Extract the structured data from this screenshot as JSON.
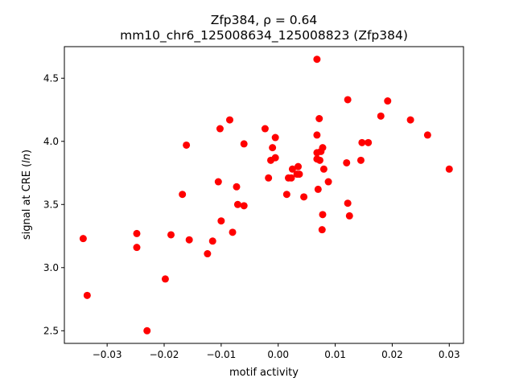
{
  "chart_data": {
    "type": "scatter",
    "title_line1": "Zfp384, ρ = 0.64",
    "title_line2": "mm10_chr6_125008634_125008823 (Zfp384)",
    "xlabel": "motif activity",
    "ylabel": "signal at CRE (ln)",
    "xlim": [
      -0.0375,
      0.0325
    ],
    "ylim": [
      2.4,
      4.75
    ],
    "xticks": [
      -0.03,
      -0.02,
      -0.01,
      0.0,
      0.01,
      0.02,
      0.03
    ],
    "xtick_labels": [
      "−0.03",
      "−0.02",
      "−0.01",
      "0.00",
      "0.01",
      "0.02",
      "0.03"
    ],
    "yticks": [
      2.5,
      3.0,
      3.5,
      4.0,
      4.5
    ],
    "ytick_labels": [
      "2.5",
      "3.0",
      "3.5",
      "4.0",
      "4.5"
    ],
    "grid": false,
    "marker_color": "#ff0000",
    "points": [
      {
        "x": -0.0342,
        "y": 3.23
      },
      {
        "x": -0.0335,
        "y": 2.78
      },
      {
        "x": -0.0248,
        "y": 3.27
      },
      {
        "x": -0.0248,
        "y": 3.16
      },
      {
        "x": -0.023,
        "y": 2.5
      },
      {
        "x": -0.0198,
        "y": 2.91
      },
      {
        "x": -0.0188,
        "y": 3.26
      },
      {
        "x": -0.0168,
        "y": 3.58
      },
      {
        "x": -0.0161,
        "y": 3.97
      },
      {
        "x": -0.0156,
        "y": 3.22
      },
      {
        "x": -0.0124,
        "y": 3.11
      },
      {
        "x": -0.0115,
        "y": 3.21
      },
      {
        "x": -0.0105,
        "y": 3.68
      },
      {
        "x": -0.0102,
        "y": 4.1
      },
      {
        "x": -0.01,
        "y": 3.37
      },
      {
        "x": -0.0085,
        "y": 4.17
      },
      {
        "x": -0.008,
        "y": 3.28
      },
      {
        "x": -0.0073,
        "y": 3.64
      },
      {
        "x": -0.0071,
        "y": 3.5
      },
      {
        "x": -0.006,
        "y": 3.98
      },
      {
        "x": -0.006,
        "y": 3.49
      },
      {
        "x": -0.0023,
        "y": 4.1
      },
      {
        "x": -0.0017,
        "y": 3.71
      },
      {
        "x": -0.0013,
        "y": 3.85
      },
      {
        "x": -0.001,
        "y": 3.95
      },
      {
        "x": -0.0005,
        "y": 3.87
      },
      {
        "x": -0.0005,
        "y": 4.03
      },
      {
        "x": 0.0015,
        "y": 3.58
      },
      {
        "x": 0.0018,
        "y": 3.71
      },
      {
        "x": 0.0023,
        "y": 3.71
      },
      {
        "x": 0.0025,
        "y": 3.78
      },
      {
        "x": 0.0033,
        "y": 3.74
      },
      {
        "x": 0.0035,
        "y": 3.8
      },
      {
        "x": 0.0037,
        "y": 3.74
      },
      {
        "x": 0.0045,
        "y": 3.56
      },
      {
        "x": 0.0068,
        "y": 4.65
      },
      {
        "x": 0.0068,
        "y": 4.05
      },
      {
        "x": 0.0068,
        "y": 3.91
      },
      {
        "x": 0.0068,
        "y": 3.86
      },
      {
        "x": 0.007,
        "y": 3.62
      },
      {
        "x": 0.0072,
        "y": 4.18
      },
      {
        "x": 0.0073,
        "y": 3.85
      },
      {
        "x": 0.0075,
        "y": 3.92
      },
      {
        "x": 0.0077,
        "y": 3.3
      },
      {
        "x": 0.0078,
        "y": 3.95
      },
      {
        "x": 0.0078,
        "y": 3.42
      },
      {
        "x": 0.008,
        "y": 3.78
      },
      {
        "x": 0.0088,
        "y": 3.68
      },
      {
        "x": 0.012,
        "y": 3.83
      },
      {
        "x": 0.0122,
        "y": 4.33
      },
      {
        "x": 0.0122,
        "y": 3.51
      },
      {
        "x": 0.0125,
        "y": 3.41
      },
      {
        "x": 0.0145,
        "y": 3.85
      },
      {
        "x": 0.0147,
        "y": 3.99
      },
      {
        "x": 0.0158,
        "y": 3.99
      },
      {
        "x": 0.018,
        "y": 4.2
      },
      {
        "x": 0.0192,
        "y": 4.32
      },
      {
        "x": 0.0232,
        "y": 4.17
      },
      {
        "x": 0.0262,
        "y": 4.05
      },
      {
        "x": 0.03,
        "y": 3.78
      }
    ]
  }
}
